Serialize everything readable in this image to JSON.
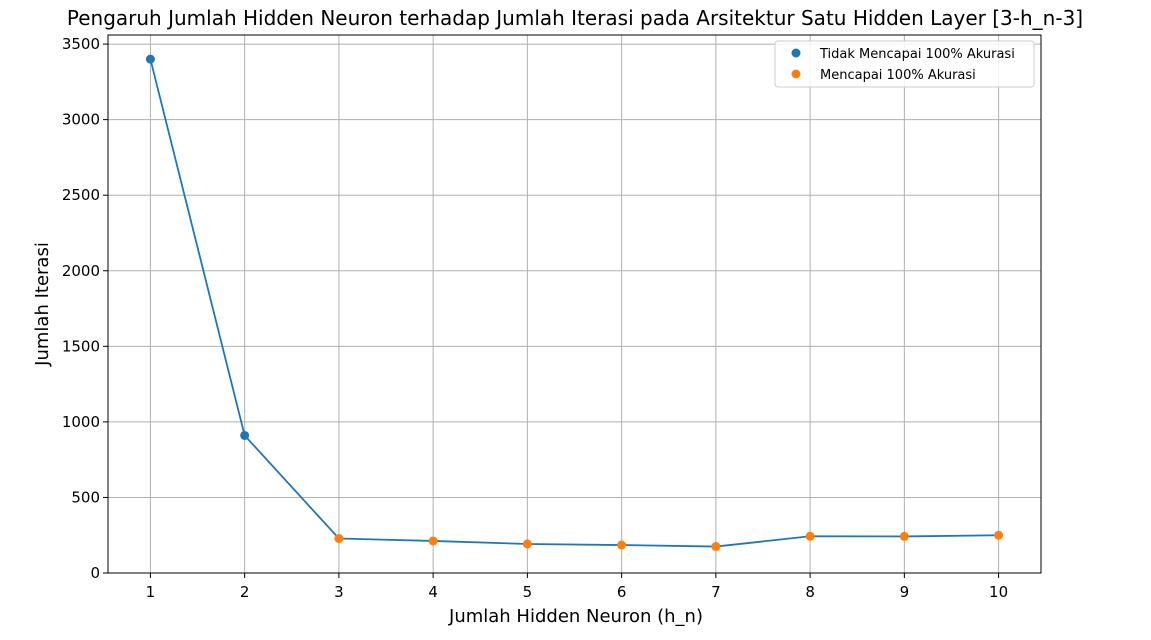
{
  "chart_data": {
    "type": "line",
    "title": "Pengaruh Jumlah Hidden Neuron terhadap Jumlah Iterasi pada Arsitektur Satu Hidden Layer [3-h_n-3]",
    "xlabel": "Jumlah Hidden Neuron (h_n)",
    "ylabel": "Jumlah Iterasi",
    "x": [
      1,
      2,
      3,
      4,
      5,
      6,
      7,
      8,
      9,
      10
    ],
    "y": [
      3400,
      910,
      228,
      212,
      192,
      185,
      175,
      243,
      242,
      250
    ],
    "xticks": [
      "1",
      "2",
      "3",
      "4",
      "5",
      "6",
      "7",
      "8",
      "9",
      "10"
    ],
    "yticks": [
      "0",
      "500",
      "1000",
      "1500",
      "2000",
      "2500",
      "3000",
      "3500"
    ],
    "xlim": [
      0.55,
      10.45
    ],
    "ylim": [
      0,
      3560
    ],
    "grid": true,
    "legend_position": "top-right",
    "series": [
      {
        "name": "Tidak Mencapai 100% Akurasi",
        "color": "#1f77b4",
        "x": [
          1,
          2
        ],
        "y": [
          3400,
          910
        ]
      },
      {
        "name": "Mencapai 100% Akurasi",
        "color": "#ff7f0e",
        "x": [
          3,
          4,
          5,
          6,
          7,
          8,
          9,
          10
        ],
        "y": [
          228,
          212,
          192,
          185,
          175,
          243,
          242,
          250
        ]
      }
    ],
    "line_color": "#1f77b4"
  }
}
